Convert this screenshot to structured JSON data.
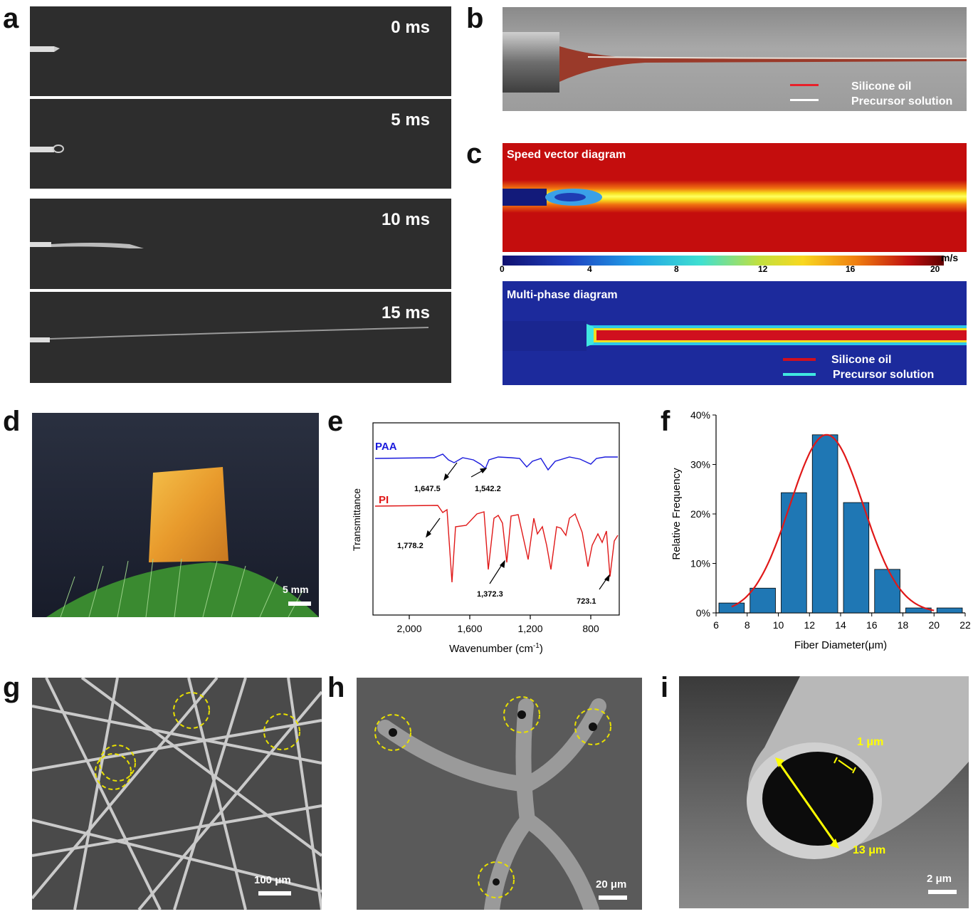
{
  "labels": {
    "a": "a",
    "b": "b",
    "c": "c",
    "d": "d",
    "e": "e",
    "f": "f",
    "g": "g",
    "h": "h",
    "i": "i"
  },
  "panel_a": {
    "frames": [
      "0 ms",
      "5 ms",
      "10 ms",
      "15 ms"
    ]
  },
  "panel_b": {
    "legend": [
      "Silicone oil",
      "Precursor solution"
    ],
    "colors": [
      "#e8202a",
      "#ffffff"
    ]
  },
  "panel_c": {
    "speed_title": "Speed vector diagram",
    "colorbar_ticks": [
      "0",
      "4",
      "8",
      "12",
      "16",
      "20"
    ],
    "colorbar_unit": "m/s",
    "multiphase_title": "Multi-phase diagram",
    "legend": [
      "Silicone oil",
      "Precursor solution"
    ],
    "legend_colors": [
      "#d0101e",
      "#40e8e0"
    ]
  },
  "panel_d": {
    "scale": "5 mm"
  },
  "panel_e": {
    "ylabel": "Transmittance",
    "xlabel": "Wavenumber (cm",
    "xlabel_sup": "-1",
    "xlabel_end": ")",
    "xticks": [
      "2,000",
      "1,600",
      "1,200",
      "800"
    ],
    "series": [
      {
        "name": "PAA",
        "color": "#1a1adc"
      },
      {
        "name": "PI",
        "color": "#e01818"
      }
    ],
    "annotations": [
      "1,647.5",
      "1,542.2",
      "1,778.2",
      "1,372.3",
      "723.1"
    ]
  },
  "chart_data": {
    "type": "bar",
    "xlabel": "Fiber Diameter(μm)",
    "ylabel": "Relative Frequency",
    "xlim": [
      6,
      22
    ],
    "ylim": [
      0,
      40
    ],
    "xticks": [
      "6",
      "8",
      "10",
      "12",
      "14",
      "16",
      "18",
      "20",
      "22"
    ],
    "yticks": [
      "0%",
      "10%",
      "20%",
      "30%",
      "40%"
    ],
    "bins": [
      [
        6,
        8
      ],
      [
        8,
        10
      ],
      [
        10,
        12
      ],
      [
        12,
        14
      ],
      [
        14,
        16
      ],
      [
        16,
        18
      ],
      [
        18,
        20
      ],
      [
        20,
        22
      ]
    ],
    "values": [
      2,
      5,
      24.3,
      36,
      22.3,
      8.8,
      1,
      1
    ],
    "bar_color": "#1f77b4",
    "fit": {
      "type": "gaussian",
      "mean": 13.1,
      "sigma": 2.35,
      "peak": 36,
      "color": "#e01818"
    }
  },
  "panel_g": {
    "scale": "100 μm"
  },
  "panel_h": {
    "scale": "20 μm"
  },
  "panel_i": {
    "wall": "1 μm",
    "diameter": "13 μm",
    "scale": "2 μm"
  }
}
